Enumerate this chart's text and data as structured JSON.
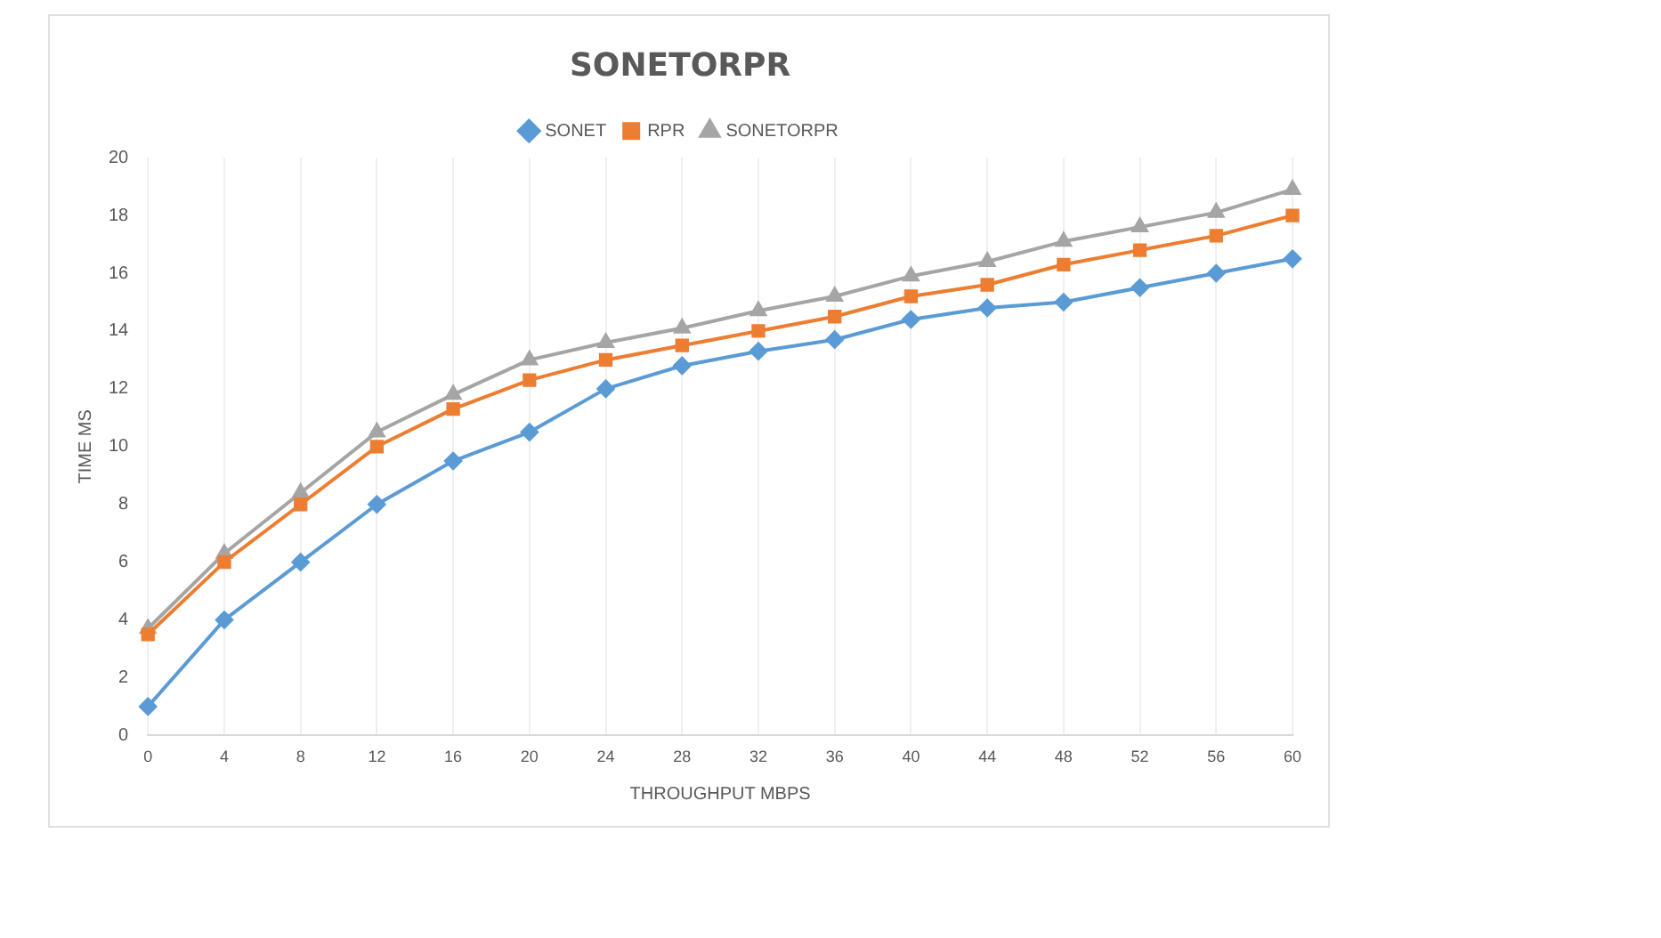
{
  "chart_data": {
    "type": "line",
    "title": "SONETORPR",
    "xlabel": "THROUGHPUT MBPS",
    "ylabel": "TIME MS",
    "categories": [
      "0",
      "4",
      "8",
      "12",
      "16",
      "20",
      "24",
      "28",
      "32",
      "36",
      "40",
      "44",
      "48",
      "52",
      "56",
      "60"
    ],
    "series": [
      {
        "name": "SONET",
        "color": "#5b9bd5",
        "marker": "diamond",
        "values": [
          1,
          4,
          6,
          8,
          9.5,
          10.5,
          12,
          12.8,
          13.3,
          13.7,
          14.4,
          14.8,
          15,
          15.5,
          16,
          16.5
        ]
      },
      {
        "name": "RPR",
        "color": "#ed7d31",
        "marker": "square",
        "values": [
          3.5,
          6,
          8,
          10,
          11.3,
          12.3,
          13,
          13.5,
          14,
          14.5,
          15.2,
          15.6,
          16.3,
          16.8,
          17.3,
          18
        ]
      },
      {
        "name": "SONETORPR",
        "color": "#a5a5a5",
        "marker": "triangle",
        "values": [
          3.7,
          6.3,
          8.4,
          10.5,
          11.8,
          13,
          13.6,
          14.1,
          14.7,
          15.2,
          15.9,
          16.4,
          17.1,
          17.6,
          18.1,
          18.9
        ]
      }
    ],
    "ylim": [
      0,
      20
    ],
    "yticks": [
      0,
      2,
      4,
      6,
      8,
      10,
      12,
      14,
      16,
      18,
      20
    ],
    "grid": "x",
    "legend": "top",
    "line_style": "solid"
  }
}
